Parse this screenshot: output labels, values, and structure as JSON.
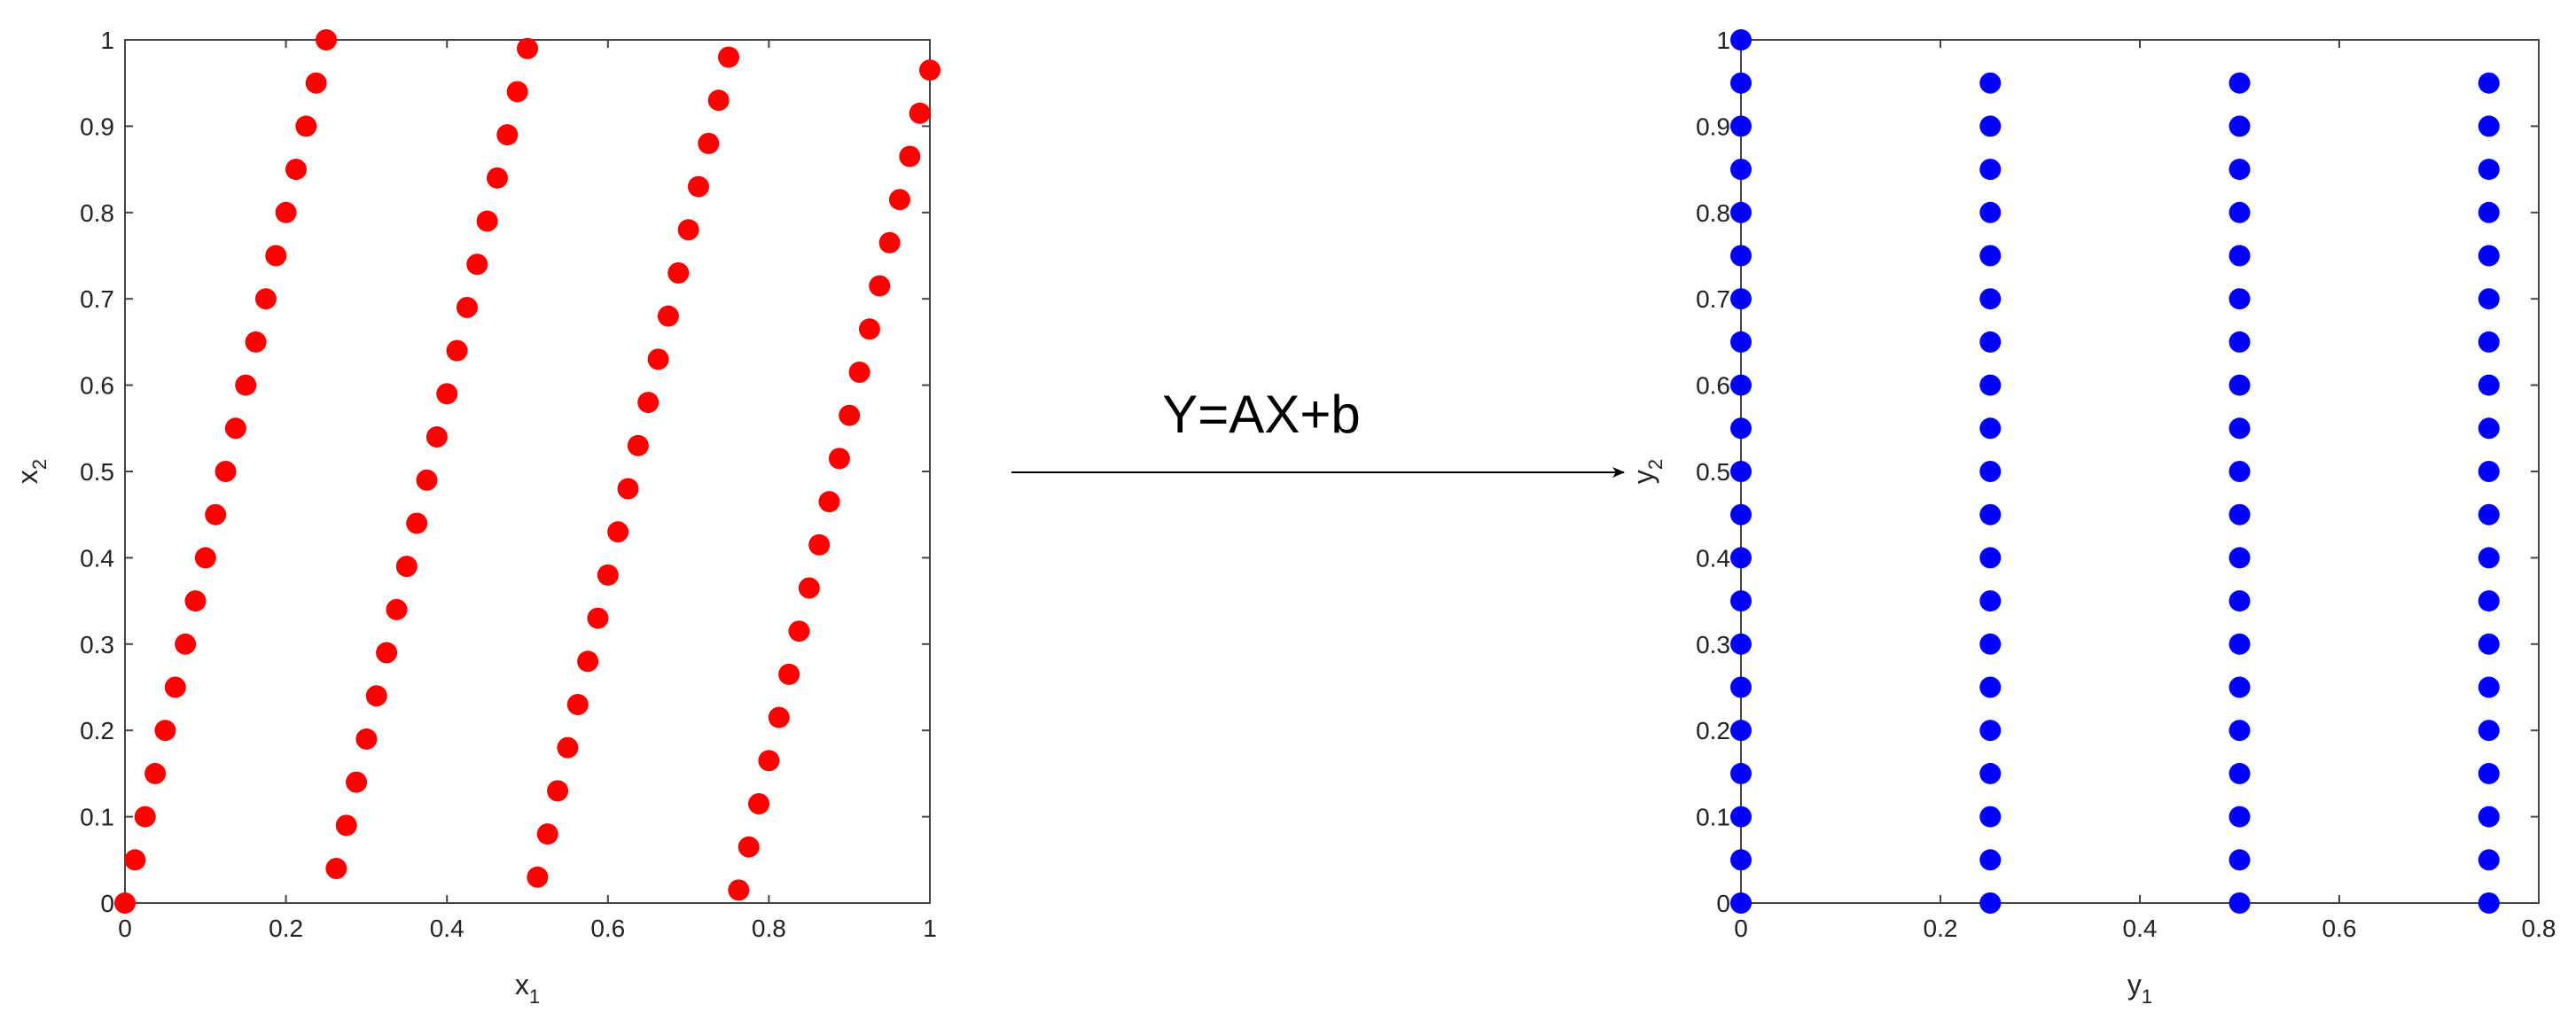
{
  "transform": {
    "label": "Y=AX+b",
    "arrow": "right-arrow"
  },
  "chart_data": [
    {
      "type": "scatter",
      "title": "",
      "xlabel": "x",
      "xlabel_sub": "1",
      "ylabel": "x",
      "ylabel_sub": "2",
      "xlim": [
        0,
        1
      ],
      "ylim": [
        0,
        1
      ],
      "xticks": [
        0,
        0.2,
        0.4,
        0.6,
        0.8,
        1
      ],
      "xtick_labels": [
        "0",
        "0.2",
        "0.4",
        "0.6",
        "0.8",
        "1"
      ],
      "yticks": [
        0,
        0.1,
        0.2,
        0.3,
        0.4,
        0.5,
        0.6,
        0.7,
        0.8,
        0.9,
        1
      ],
      "ytick_labels": [
        "0",
        "0.1",
        "0.2",
        "0.3",
        "0.4",
        "0.5",
        "0.6",
        "0.7",
        "0.8",
        "0.9",
        "1"
      ],
      "grid": false,
      "marker_color": "#ff0000",
      "series": [
        {
          "x": [
            0.0,
            0.0125,
            0.025,
            0.0375,
            0.05,
            0.0625,
            0.075,
            0.0875,
            0.1,
            0.1125,
            0.125,
            0.1375,
            0.15,
            0.1625,
            0.175,
            0.1875,
            0.2,
            0.2125,
            0.225,
            0.2375,
            0.25
          ],
          "y": [
            0.0,
            0.05,
            0.1,
            0.15,
            0.2,
            0.25,
            0.3,
            0.35,
            0.4,
            0.45,
            0.5,
            0.55,
            0.6,
            0.65,
            0.7,
            0.75,
            0.8,
            0.85,
            0.9,
            0.95,
            1.0
          ]
        },
        {
          "x": [
            0.2625,
            0.275,
            0.2875,
            0.3,
            0.3125,
            0.325,
            0.3375,
            0.35,
            0.3625,
            0.375,
            0.3875,
            0.4,
            0.4125,
            0.425,
            0.4375,
            0.45,
            0.4625,
            0.475,
            0.4875,
            0.5
          ],
          "y": [
            0.04,
            0.09,
            0.14,
            0.19,
            0.24,
            0.29,
            0.34,
            0.39,
            0.44,
            0.49,
            0.54,
            0.59,
            0.64,
            0.69,
            0.74,
            0.79,
            0.84,
            0.89,
            0.94,
            0.99
          ]
        },
        {
          "x": [
            0.5125,
            0.525,
            0.5375,
            0.55,
            0.5625,
            0.575,
            0.5875,
            0.6,
            0.6125,
            0.625,
            0.6375,
            0.65,
            0.6625,
            0.675,
            0.6875,
            0.7,
            0.7125,
            0.725,
            0.7375,
            0.75
          ],
          "y": [
            0.03,
            0.08,
            0.13,
            0.18,
            0.23,
            0.28,
            0.33,
            0.38,
            0.43,
            0.48,
            0.53,
            0.58,
            0.63,
            0.68,
            0.73,
            0.78,
            0.83,
            0.88,
            0.93,
            0.98
          ]
        },
        {
          "x": [
            0.7625,
            0.775,
            0.7875,
            0.8,
            0.8125,
            0.825,
            0.8375,
            0.85,
            0.8625,
            0.875,
            0.8875,
            0.9,
            0.9125,
            0.925,
            0.9375,
            0.95,
            0.9625,
            0.975,
            0.9875,
            1.0
          ],
          "y": [
            0.015,
            0.065,
            0.115,
            0.165,
            0.215,
            0.265,
            0.315,
            0.365,
            0.415,
            0.465,
            0.515,
            0.565,
            0.615,
            0.665,
            0.715,
            0.765,
            0.815,
            0.865,
            0.915,
            0.965
          ]
        }
      ]
    },
    {
      "type": "scatter",
      "title": "",
      "xlabel": "y",
      "xlabel_sub": "1",
      "ylabel": "y",
      "ylabel_sub": "2",
      "xlim": [
        0,
        0.8
      ],
      "ylim": [
        0,
        1
      ],
      "xticks": [
        0,
        0.2,
        0.4,
        0.6,
        0.8
      ],
      "xtick_labels": [
        "0",
        "0.2",
        "0.4",
        "0.6",
        "0.8"
      ],
      "yticks": [
        0,
        0.1,
        0.2,
        0.3,
        0.4,
        0.5,
        0.6,
        0.7,
        0.8,
        0.9,
        1
      ],
      "ytick_labels": [
        "0",
        "0.1",
        "0.2",
        "0.3",
        "0.4",
        "0.5",
        "0.6",
        "0.7",
        "0.8",
        "0.9",
        "1"
      ],
      "grid": false,
      "marker_color": "#0000ff",
      "series": [
        {
          "x": [
            0,
            0,
            0,
            0,
            0,
            0,
            0,
            0,
            0,
            0,
            0,
            0,
            0,
            0,
            0,
            0,
            0,
            0,
            0,
            0,
            0
          ],
          "y": [
            0.0,
            0.05,
            0.1,
            0.15,
            0.2,
            0.25,
            0.3,
            0.35,
            0.4,
            0.45,
            0.5,
            0.55,
            0.6,
            0.65,
            0.7,
            0.75,
            0.8,
            0.85,
            0.9,
            0.95,
            1.0
          ]
        },
        {
          "x": [
            0.25,
            0.25,
            0.25,
            0.25,
            0.25,
            0.25,
            0.25,
            0.25,
            0.25,
            0.25,
            0.25,
            0.25,
            0.25,
            0.25,
            0.25,
            0.25,
            0.25,
            0.25,
            0.25,
            0.25
          ],
          "y": [
            0.0,
            0.05,
            0.1,
            0.15,
            0.2,
            0.25,
            0.3,
            0.35,
            0.4,
            0.45,
            0.5,
            0.55,
            0.6,
            0.65,
            0.7,
            0.75,
            0.8,
            0.85,
            0.9,
            0.95
          ]
        },
        {
          "x": [
            0.5,
            0.5,
            0.5,
            0.5,
            0.5,
            0.5,
            0.5,
            0.5,
            0.5,
            0.5,
            0.5,
            0.5,
            0.5,
            0.5,
            0.5,
            0.5,
            0.5,
            0.5,
            0.5,
            0.5
          ],
          "y": [
            0.0,
            0.05,
            0.1,
            0.15,
            0.2,
            0.25,
            0.3,
            0.35,
            0.4,
            0.45,
            0.5,
            0.55,
            0.6,
            0.65,
            0.7,
            0.75,
            0.8,
            0.85,
            0.9,
            0.95
          ]
        },
        {
          "x": [
            0.75,
            0.75,
            0.75,
            0.75,
            0.75,
            0.75,
            0.75,
            0.75,
            0.75,
            0.75,
            0.75,
            0.75,
            0.75,
            0.75,
            0.75,
            0.75,
            0.75,
            0.75,
            0.75,
            0.75
          ],
          "y": [
            0.0,
            0.05,
            0.1,
            0.15,
            0.2,
            0.25,
            0.3,
            0.35,
            0.4,
            0.45,
            0.5,
            0.55,
            0.6,
            0.65,
            0.7,
            0.75,
            0.8,
            0.85,
            0.9,
            0.95
          ]
        }
      ]
    }
  ]
}
